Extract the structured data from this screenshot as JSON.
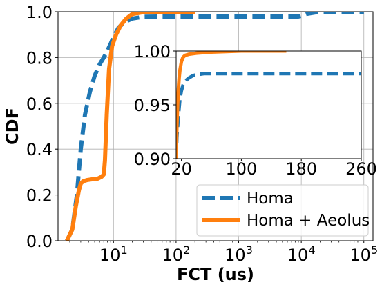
{
  "chart_data": [
    {
      "type": "line",
      "xscale": "log",
      "xlabel": "FCT (us)",
      "ylabel": "CDF",
      "xlim": [
        1.3,
        140000
      ],
      "ylim": [
        0,
        1.0
      ],
      "grid": true,
      "x_ticks": [
        10,
        100,
        1000,
        10000,
        100000
      ],
      "x_tick_labels": [
        {
          "base": "10",
          "exp": "1"
        },
        {
          "base": "10",
          "exp": "2"
        },
        {
          "base": "10",
          "exp": "3"
        },
        {
          "base": "10",
          "exp": "4"
        },
        {
          "base": "10",
          "exp": "5"
        }
      ],
      "y_ticks": [
        0.0,
        0.2,
        0.4,
        0.6,
        0.8,
        1.0
      ],
      "y_tick_labels": [
        "0.0",
        "0.2",
        "0.4",
        "0.6",
        "0.8",
        "1.0"
      ],
      "legend": {
        "position": "lower-right"
      },
      "series": [
        {
          "name": "Homa",
          "color": "#1f77b4",
          "style": "dashed",
          "x": [
            1.8,
            2.2,
            2.6,
            3.0,
            3.5,
            4.2,
            5,
            6,
            7,
            8,
            9,
            10,
            12,
            15,
            20,
            30,
            50,
            100,
            200,
            1000,
            5000,
            9000,
            10000,
            12000,
            20000,
            100000
          ],
          "y": [
            0.0,
            0.05,
            0.2,
            0.4,
            0.55,
            0.65,
            0.72,
            0.77,
            0.8,
            0.83,
            0.86,
            0.89,
            0.93,
            0.955,
            0.97,
            0.978,
            0.979,
            0.979,
            0.979,
            0.979,
            0.979,
            0.979,
            0.982,
            0.99,
            1.0,
            1.0
          ]
        },
        {
          "name": "Homa + Aeolus",
          "color": "#ff7f0e",
          "style": "solid",
          "x": [
            1.8,
            2.2,
            2.5,
            2.8,
            3.0,
            3.3,
            3.8,
            4.5,
            5.5,
            6.5,
            7.0,
            7.3,
            7.8,
            8.5,
            9.5,
            11,
            13,
            16,
            20,
            30,
            50,
            100,
            200
          ],
          "y": [
            0.0,
            0.05,
            0.15,
            0.22,
            0.25,
            0.26,
            0.265,
            0.268,
            0.27,
            0.28,
            0.29,
            0.35,
            0.55,
            0.75,
            0.85,
            0.9,
            0.94,
            0.97,
            0.99,
            0.998,
            1.0,
            1.0,
            1.0
          ]
        }
      ]
    },
    {
      "type": "line",
      "xscale": "linear",
      "xlabel": "",
      "ylabel": "",
      "xlim": [
        13,
        260
      ],
      "ylim": [
        0.9,
        1.0
      ],
      "grid": false,
      "x_ticks": [
        20,
        100,
        180,
        260
      ],
      "x_tick_labels": [
        "20",
        "100",
        "180",
        "260"
      ],
      "y_ticks": [
        0.9,
        0.95,
        1.0
      ],
      "y_tick_labels": [
        "0.90",
        "0.95",
        "1.00"
      ],
      "series": [
        {
          "name": "Homa",
          "color": "#1f77b4",
          "style": "dashed",
          "x": [
            13,
            14,
            16,
            18,
            20,
            22,
            25,
            30,
            35,
            40,
            50,
            260
          ],
          "y": [
            0.9,
            0.92,
            0.94,
            0.955,
            0.963,
            0.968,
            0.972,
            0.975,
            0.977,
            0.978,
            0.979,
            0.979
          ]
        },
        {
          "name": "Homa + Aeolus",
          "color": "#ff7f0e",
          "style": "solid",
          "x": [
            13,
            14,
            15,
            16,
            17,
            18,
            20,
            22,
            25,
            30,
            40,
            60,
            100,
            140,
            160
          ],
          "y": [
            0.9,
            0.93,
            0.95,
            0.965,
            0.975,
            0.982,
            0.99,
            0.994,
            0.996,
            0.997,
            0.998,
            0.999,
            1.0,
            1.0,
            1.0
          ]
        }
      ]
    }
  ]
}
